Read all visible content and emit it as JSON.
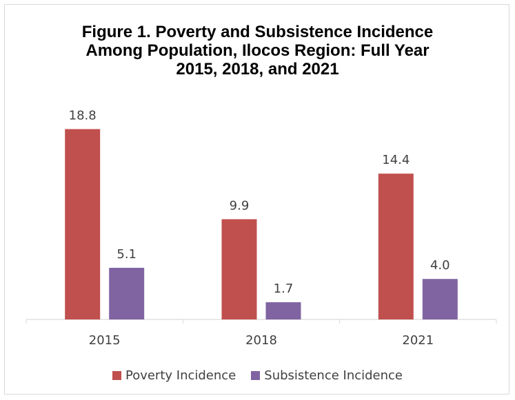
{
  "chart_data": {
    "type": "bar",
    "title": "Figure 1. Poverty and Subsistence Incidence\nAmong Population, Ilocos Region: Full Year\n2015, 2018, and 2021",
    "categories": [
      "2015",
      "2018",
      "2021"
    ],
    "series": [
      {
        "name": "Poverty Incidence",
        "values": [
          18.8,
          9.9,
          14.4
        ],
        "color": "#c0504d",
        "labels": [
          "18.8",
          "9.9",
          "14.4"
        ]
      },
      {
        "name": "Subsistence Incidence",
        "values": [
          5.1,
          1.7,
          4.0
        ],
        "color": "#8064a2",
        "labels": [
          "5.1",
          "1.7",
          "4.0"
        ]
      }
    ],
    "xlabel": "",
    "ylabel": "",
    "ylim": [
      0,
      20
    ],
    "grid": false,
    "legend": "bottom"
  }
}
